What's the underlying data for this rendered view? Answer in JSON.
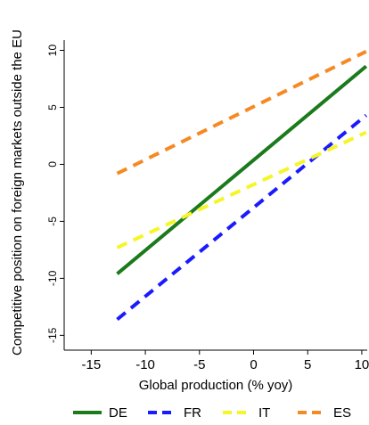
{
  "chart_data": {
    "type": "line",
    "title": "",
    "xlabel": "Global production (% yoy)",
    "ylabel": "Competitive position on foreign markets outside the EU",
    "xlim": [
      -17.5,
      10.5
    ],
    "ylim": [
      -16.3,
      10.9
    ],
    "xticks": [
      -15,
      -10,
      -5,
      0,
      5,
      10
    ],
    "yticks": [
      -15,
      -10,
      -5,
      0,
      5,
      10
    ],
    "grid": false,
    "legend_position": "bottom",
    "series": [
      {
        "name": "DE",
        "color": "#1b7a1b",
        "dash": "solid",
        "x": [
          -12.6,
          10.4
        ],
        "y": [
          -9.6,
          8.6
        ]
      },
      {
        "name": "FR",
        "color": "#1a1aff",
        "dash": "dashed",
        "x": [
          -12.6,
          10.4
        ],
        "y": [
          -13.6,
          4.3
        ]
      },
      {
        "name": "IT",
        "color": "#f5f527",
        "dash": "dashed",
        "x": [
          -12.6,
          10.4
        ],
        "y": [
          -7.3,
          2.8
        ]
      },
      {
        "name": "ES",
        "color": "#f58a24",
        "dash": "dashed",
        "x": [
          -12.6,
          10.4
        ],
        "y": [
          -0.8,
          9.9
        ]
      }
    ]
  }
}
